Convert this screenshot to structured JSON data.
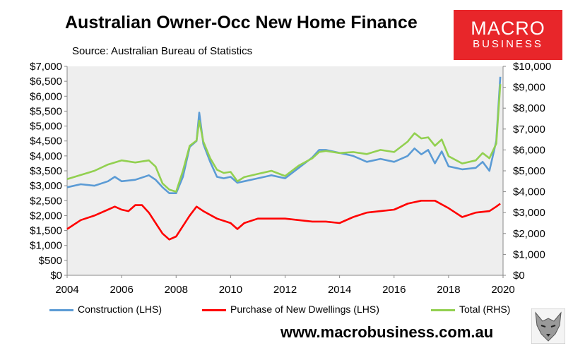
{
  "title": "Australian Owner-Occ New Home Finance",
  "subtitle": "Source: Australian Bureau of Statistics",
  "logo": {
    "line1": "MACRO",
    "line2": "BUSINESS"
  },
  "footer_url": "www.macrobusiness.com.au",
  "colors": {
    "construction": "#5b9bd5",
    "purchase": "#ff0000",
    "total": "#92d050",
    "plot_bg": "#eeeeee",
    "brand": "#e8262a"
  },
  "chart_data": {
    "type": "line",
    "x_range": [
      2004,
      2020
    ],
    "x_ticks": [
      "2004",
      "2006",
      "2008",
      "2010",
      "2012",
      "2014",
      "2016",
      "2018",
      "2020"
    ],
    "y_left": {
      "range": [
        0,
        7000
      ],
      "ticks": [
        "$0",
        "$500",
        "$1,000",
        "$1,500",
        "$2,000",
        "$2,500",
        "$3,000",
        "$3,500",
        "$4,000",
        "$4,500",
        "$5,000",
        "$5,500",
        "$6,000",
        "$6,500",
        "$7,000"
      ]
    },
    "y_right": {
      "range": [
        0,
        10000
      ],
      "ticks": [
        "$0",
        "$1,000",
        "$2,000",
        "$3,000",
        "$4,000",
        "$5,000",
        "$6,000",
        "$7,000",
        "$8,000",
        "$9,000",
        "$10,000"
      ]
    },
    "legend_position": "bottom",
    "grid": false,
    "series": [
      {
        "name": "Construction (LHS)",
        "axis": "left",
        "color": "#5b9bd5",
        "points": [
          [
            2004.0,
            2950
          ],
          [
            2004.5,
            3050
          ],
          [
            2005.0,
            3000
          ],
          [
            2005.5,
            3150
          ],
          [
            2005.75,
            3300
          ],
          [
            2006.0,
            3150
          ],
          [
            2006.5,
            3200
          ],
          [
            2007.0,
            3350
          ],
          [
            2007.25,
            3200
          ],
          [
            2007.5,
            2950
          ],
          [
            2007.75,
            2750
          ],
          [
            2008.0,
            2750
          ],
          [
            2008.25,
            3300
          ],
          [
            2008.5,
            4300
          ],
          [
            2008.75,
            4500
          ],
          [
            2008.85,
            5450
          ],
          [
            2009.0,
            4400
          ],
          [
            2009.25,
            3800
          ],
          [
            2009.5,
            3300
          ],
          [
            2009.75,
            3250
          ],
          [
            2010.0,
            3300
          ],
          [
            2010.25,
            3100
          ],
          [
            2010.5,
            3150
          ],
          [
            2011.0,
            3250
          ],
          [
            2011.5,
            3350
          ],
          [
            2012.0,
            3250
          ],
          [
            2012.5,
            3600
          ],
          [
            2013.0,
            3950
          ],
          [
            2013.25,
            4200
          ],
          [
            2013.5,
            4200
          ],
          [
            2014.0,
            4100
          ],
          [
            2014.5,
            4000
          ],
          [
            2015.0,
            3800
          ],
          [
            2015.5,
            3900
          ],
          [
            2016.0,
            3800
          ],
          [
            2016.5,
            4000
          ],
          [
            2016.75,
            4250
          ],
          [
            2017.0,
            4050
          ],
          [
            2017.25,
            4200
          ],
          [
            2017.5,
            3750
          ],
          [
            2017.75,
            4150
          ],
          [
            2018.0,
            3650
          ],
          [
            2018.5,
            3550
          ],
          [
            2019.0,
            3600
          ],
          [
            2019.25,
            3800
          ],
          [
            2019.5,
            3500
          ],
          [
            2019.75,
            4500
          ],
          [
            2019.9,
            6650
          ]
        ]
      },
      {
        "name": "Purchase of New Dwellings (LHS)",
        "axis": "left",
        "color": "#ff0000",
        "points": [
          [
            2004.0,
            1550
          ],
          [
            2004.5,
            1850
          ],
          [
            2005.0,
            2000
          ],
          [
            2005.5,
            2200
          ],
          [
            2005.75,
            2300
          ],
          [
            2006.0,
            2200
          ],
          [
            2006.25,
            2150
          ],
          [
            2006.5,
            2350
          ],
          [
            2006.75,
            2350
          ],
          [
            2007.0,
            2100
          ],
          [
            2007.25,
            1750
          ],
          [
            2007.5,
            1400
          ],
          [
            2007.75,
            1200
          ],
          [
            2008.0,
            1300
          ],
          [
            2008.5,
            2000
          ],
          [
            2008.75,
            2300
          ],
          [
            2009.0,
            2150
          ],
          [
            2009.5,
            1900
          ],
          [
            2010.0,
            1750
          ],
          [
            2010.25,
            1550
          ],
          [
            2010.5,
            1750
          ],
          [
            2011.0,
            1900
          ],
          [
            2011.5,
            1900
          ],
          [
            2012.0,
            1900
          ],
          [
            2012.5,
            1850
          ],
          [
            2013.0,
            1800
          ],
          [
            2013.5,
            1800
          ],
          [
            2014.0,
            1750
          ],
          [
            2014.5,
            1950
          ],
          [
            2015.0,
            2100
          ],
          [
            2015.5,
            2150
          ],
          [
            2016.0,
            2200
          ],
          [
            2016.5,
            2400
          ],
          [
            2016.75,
            2450
          ],
          [
            2017.0,
            2500
          ],
          [
            2017.5,
            2500
          ],
          [
            2018.0,
            2250
          ],
          [
            2018.25,
            2100
          ],
          [
            2018.5,
            1950
          ],
          [
            2019.0,
            2100
          ],
          [
            2019.5,
            2150
          ],
          [
            2019.75,
            2300
          ],
          [
            2019.9,
            2400
          ]
        ]
      },
      {
        "name": "Total (RHS)",
        "axis": "right",
        "color": "#92d050",
        "points": [
          [
            2004.0,
            4600
          ],
          [
            2004.5,
            4800
          ],
          [
            2005.0,
            5000
          ],
          [
            2005.5,
            5300
          ],
          [
            2006.0,
            5500
          ],
          [
            2006.5,
            5400
          ],
          [
            2007.0,
            5500
          ],
          [
            2007.25,
            5200
          ],
          [
            2007.5,
            4400
          ],
          [
            2007.75,
            4100
          ],
          [
            2008.0,
            4000
          ],
          [
            2008.25,
            5000
          ],
          [
            2008.5,
            6200
          ],
          [
            2008.75,
            6450
          ],
          [
            2008.85,
            7400
          ],
          [
            2009.0,
            6400
          ],
          [
            2009.25,
            5600
          ],
          [
            2009.5,
            5050
          ],
          [
            2009.75,
            4900
          ],
          [
            2010.0,
            4950
          ],
          [
            2010.25,
            4500
          ],
          [
            2010.5,
            4700
          ],
          [
            2011.0,
            4850
          ],
          [
            2011.5,
            5000
          ],
          [
            2012.0,
            4750
          ],
          [
            2012.5,
            5250
          ],
          [
            2013.0,
            5600
          ],
          [
            2013.25,
            5900
          ],
          [
            2013.5,
            5950
          ],
          [
            2014.0,
            5850
          ],
          [
            2014.5,
            5900
          ],
          [
            2015.0,
            5800
          ],
          [
            2015.5,
            6000
          ],
          [
            2016.0,
            5900
          ],
          [
            2016.5,
            6400
          ],
          [
            2016.75,
            6800
          ],
          [
            2017.0,
            6550
          ],
          [
            2017.25,
            6600
          ],
          [
            2017.5,
            6200
          ],
          [
            2017.75,
            6500
          ],
          [
            2018.0,
            5700
          ],
          [
            2018.5,
            5350
          ],
          [
            2019.0,
            5500
          ],
          [
            2019.25,
            5850
          ],
          [
            2019.5,
            5600
          ],
          [
            2019.75,
            6300
          ],
          [
            2019.9,
            9150
          ]
        ]
      }
    ]
  }
}
